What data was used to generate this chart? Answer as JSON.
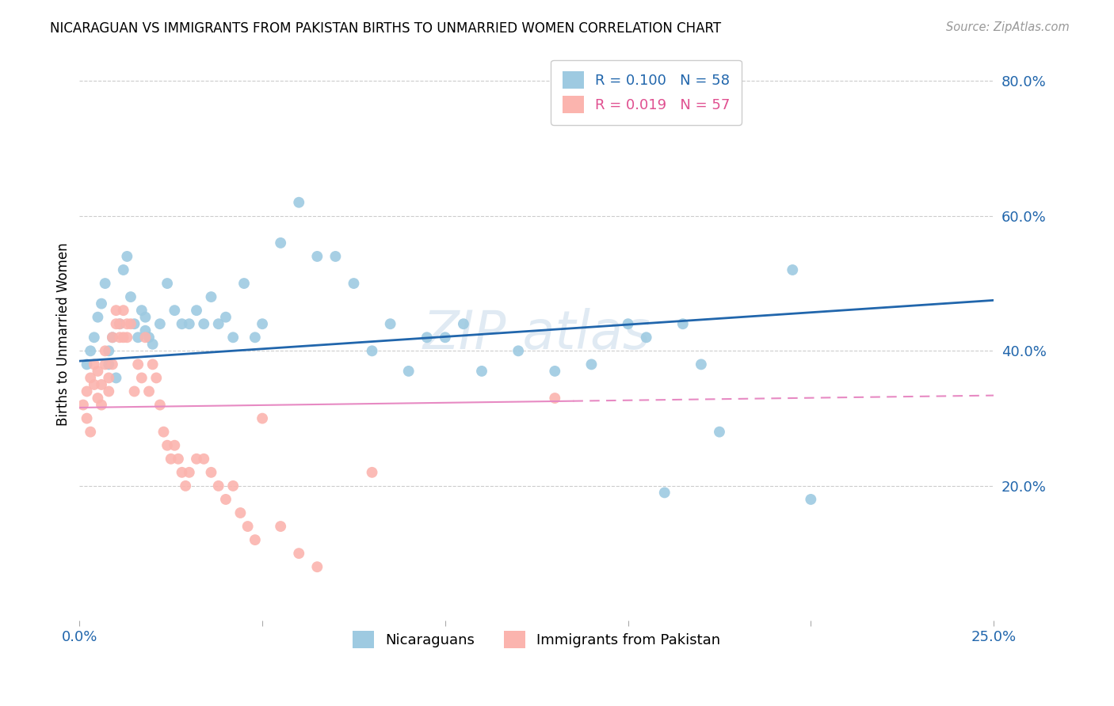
{
  "title": "NICARAGUAN VS IMMIGRANTS FROM PAKISTAN BIRTHS TO UNMARRIED WOMEN CORRELATION CHART",
  "source": "Source: ZipAtlas.com",
  "xlabel_blue": "Nicaraguans",
  "xlabel_pink": "Immigrants from Pakistan",
  "ylabel": "Births to Unmarried Women",
  "xlim": [
    0.0,
    0.25
  ],
  "ylim": [
    0.0,
    0.85
  ],
  "yticks_right": [
    0.2,
    0.4,
    0.6,
    0.8
  ],
  "ytick_right_labels": [
    "20.0%",
    "40.0%",
    "60.0%",
    "80.0%"
  ],
  "legend_blue_r": "R = 0.100",
  "legend_blue_n": "N = 58",
  "legend_pink_r": "R = 0.019",
  "legend_pink_n": "N = 57",
  "blue_color": "#9ecae1",
  "pink_color": "#fbb4ae",
  "blue_line_color": "#2166ac",
  "pink_line_color": "#e78ac3",
  "grid_color": "#cccccc",
  "blue_scatter_x": [
    0.002,
    0.003,
    0.004,
    0.005,
    0.006,
    0.007,
    0.008,
    0.008,
    0.009,
    0.01,
    0.011,
    0.012,
    0.013,
    0.014,
    0.015,
    0.016,
    0.017,
    0.018,
    0.018,
    0.019,
    0.02,
    0.022,
    0.024,
    0.026,
    0.028,
    0.03,
    0.032,
    0.034,
    0.036,
    0.038,
    0.04,
    0.042,
    0.045,
    0.048,
    0.05,
    0.055,
    0.06,
    0.065,
    0.07,
    0.075,
    0.08,
    0.085,
    0.09,
    0.095,
    0.1,
    0.105,
    0.11,
    0.12,
    0.13,
    0.14,
    0.15,
    0.155,
    0.16,
    0.165,
    0.17,
    0.175,
    0.195,
    0.2
  ],
  "blue_scatter_y": [
    0.38,
    0.4,
    0.42,
    0.45,
    0.47,
    0.5,
    0.38,
    0.4,
    0.42,
    0.36,
    0.44,
    0.52,
    0.54,
    0.48,
    0.44,
    0.42,
    0.46,
    0.43,
    0.45,
    0.42,
    0.41,
    0.44,
    0.5,
    0.46,
    0.44,
    0.44,
    0.46,
    0.44,
    0.48,
    0.44,
    0.45,
    0.42,
    0.5,
    0.42,
    0.44,
    0.56,
    0.62,
    0.54,
    0.54,
    0.5,
    0.4,
    0.44,
    0.37,
    0.42,
    0.42,
    0.44,
    0.37,
    0.4,
    0.37,
    0.38,
    0.44,
    0.42,
    0.19,
    0.44,
    0.38,
    0.28,
    0.52,
    0.18
  ],
  "pink_scatter_x": [
    0.001,
    0.002,
    0.002,
    0.003,
    0.003,
    0.004,
    0.004,
    0.005,
    0.005,
    0.006,
    0.006,
    0.007,
    0.007,
    0.008,
    0.008,
    0.009,
    0.009,
    0.01,
    0.01,
    0.011,
    0.011,
    0.012,
    0.012,
    0.013,
    0.013,
    0.014,
    0.015,
    0.016,
    0.017,
    0.018,
    0.019,
    0.02,
    0.021,
    0.022,
    0.023,
    0.024,
    0.025,
    0.026,
    0.027,
    0.028,
    0.029,
    0.03,
    0.032,
    0.034,
    0.036,
    0.038,
    0.04,
    0.042,
    0.044,
    0.046,
    0.048,
    0.05,
    0.055,
    0.06,
    0.065,
    0.08,
    0.13
  ],
  "pink_scatter_y": [
    0.32,
    0.34,
    0.3,
    0.28,
    0.36,
    0.35,
    0.38,
    0.33,
    0.37,
    0.35,
    0.32,
    0.4,
    0.38,
    0.36,
    0.34,
    0.42,
    0.38,
    0.44,
    0.46,
    0.42,
    0.44,
    0.42,
    0.46,
    0.44,
    0.42,
    0.44,
    0.34,
    0.38,
    0.36,
    0.42,
    0.34,
    0.38,
    0.36,
    0.32,
    0.28,
    0.26,
    0.24,
    0.26,
    0.24,
    0.22,
    0.2,
    0.22,
    0.24,
    0.24,
    0.22,
    0.2,
    0.18,
    0.2,
    0.16,
    0.14,
    0.12,
    0.3,
    0.14,
    0.1,
    0.08,
    0.22,
    0.33
  ],
  "blue_line_x0": 0.0,
  "blue_line_x1": 0.25,
  "blue_line_y0": 0.385,
  "blue_line_y1": 0.475,
  "pink_line_solid_x0": 0.0,
  "pink_line_solid_x1": 0.135,
  "pink_line_dash_x0": 0.135,
  "pink_line_dash_x1": 0.25,
  "pink_line_y0": 0.316,
  "pink_line_y1": 0.334
}
